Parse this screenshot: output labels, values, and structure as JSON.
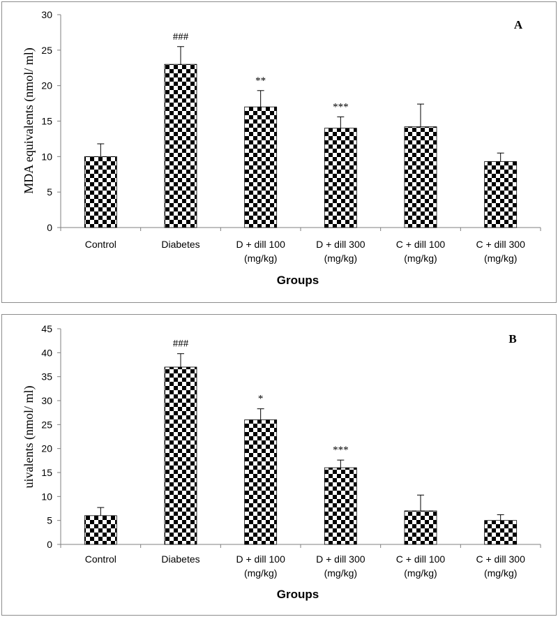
{
  "chart_data": [
    {
      "type": "bar",
      "panel_label": "A",
      "categories": [
        [
          "Control"
        ],
        [
          "Diabetes"
        ],
        [
          "D + dill 100",
          "(mg/kg)"
        ],
        [
          "D + dill 300",
          "(mg/kg)"
        ],
        [
          "C + dill 100",
          "(mg/kg)"
        ],
        [
          "C + dill 300",
          "(mg/kg)"
        ]
      ],
      "values": [
        10,
        23,
        17,
        14,
        14.2,
        9.3
      ],
      "error": [
        1.8,
        2.5,
        2.3,
        1.6,
        3.2,
        1.2
      ],
      "significance": [
        "",
        "###",
        "**",
        "***",
        "",
        ""
      ],
      "xlabel": "Groups",
      "ylabel": "MDA  equivalents (nmol/ ml)",
      "ylim": [
        0,
        30
      ],
      "yticks": [
        0,
        5,
        10,
        15,
        20,
        25,
        30
      ],
      "grid": false,
      "bar_pattern": "black-white checkerboard"
    },
    {
      "type": "bar",
      "panel_label": "B",
      "categories": [
        [
          "Control"
        ],
        [
          "Diabetes"
        ],
        [
          "D + dill 100",
          "(mg/kg)"
        ],
        [
          "D + dill 300",
          "(mg/kg)"
        ],
        [
          "C + dill 100",
          "(mg/kg)"
        ],
        [
          "C + dill 300",
          "(mg/kg)"
        ]
      ],
      "values": [
        6,
        37,
        26,
        16,
        7,
        5
      ],
      "error": [
        1.7,
        2.8,
        2.3,
        1.6,
        3.3,
        1.2
      ],
      "significance": [
        "",
        "###",
        "*",
        "***",
        "",
        ""
      ],
      "xlabel": "Groups",
      "ylabel": "uivalents (nmol/ ml)",
      "ylim": [
        0,
        45
      ],
      "yticks": [
        0,
        5,
        10,
        15,
        20,
        25,
        30,
        35,
        40,
        45
      ],
      "grid": false,
      "bar_pattern": "black-white checkerboard"
    }
  ]
}
